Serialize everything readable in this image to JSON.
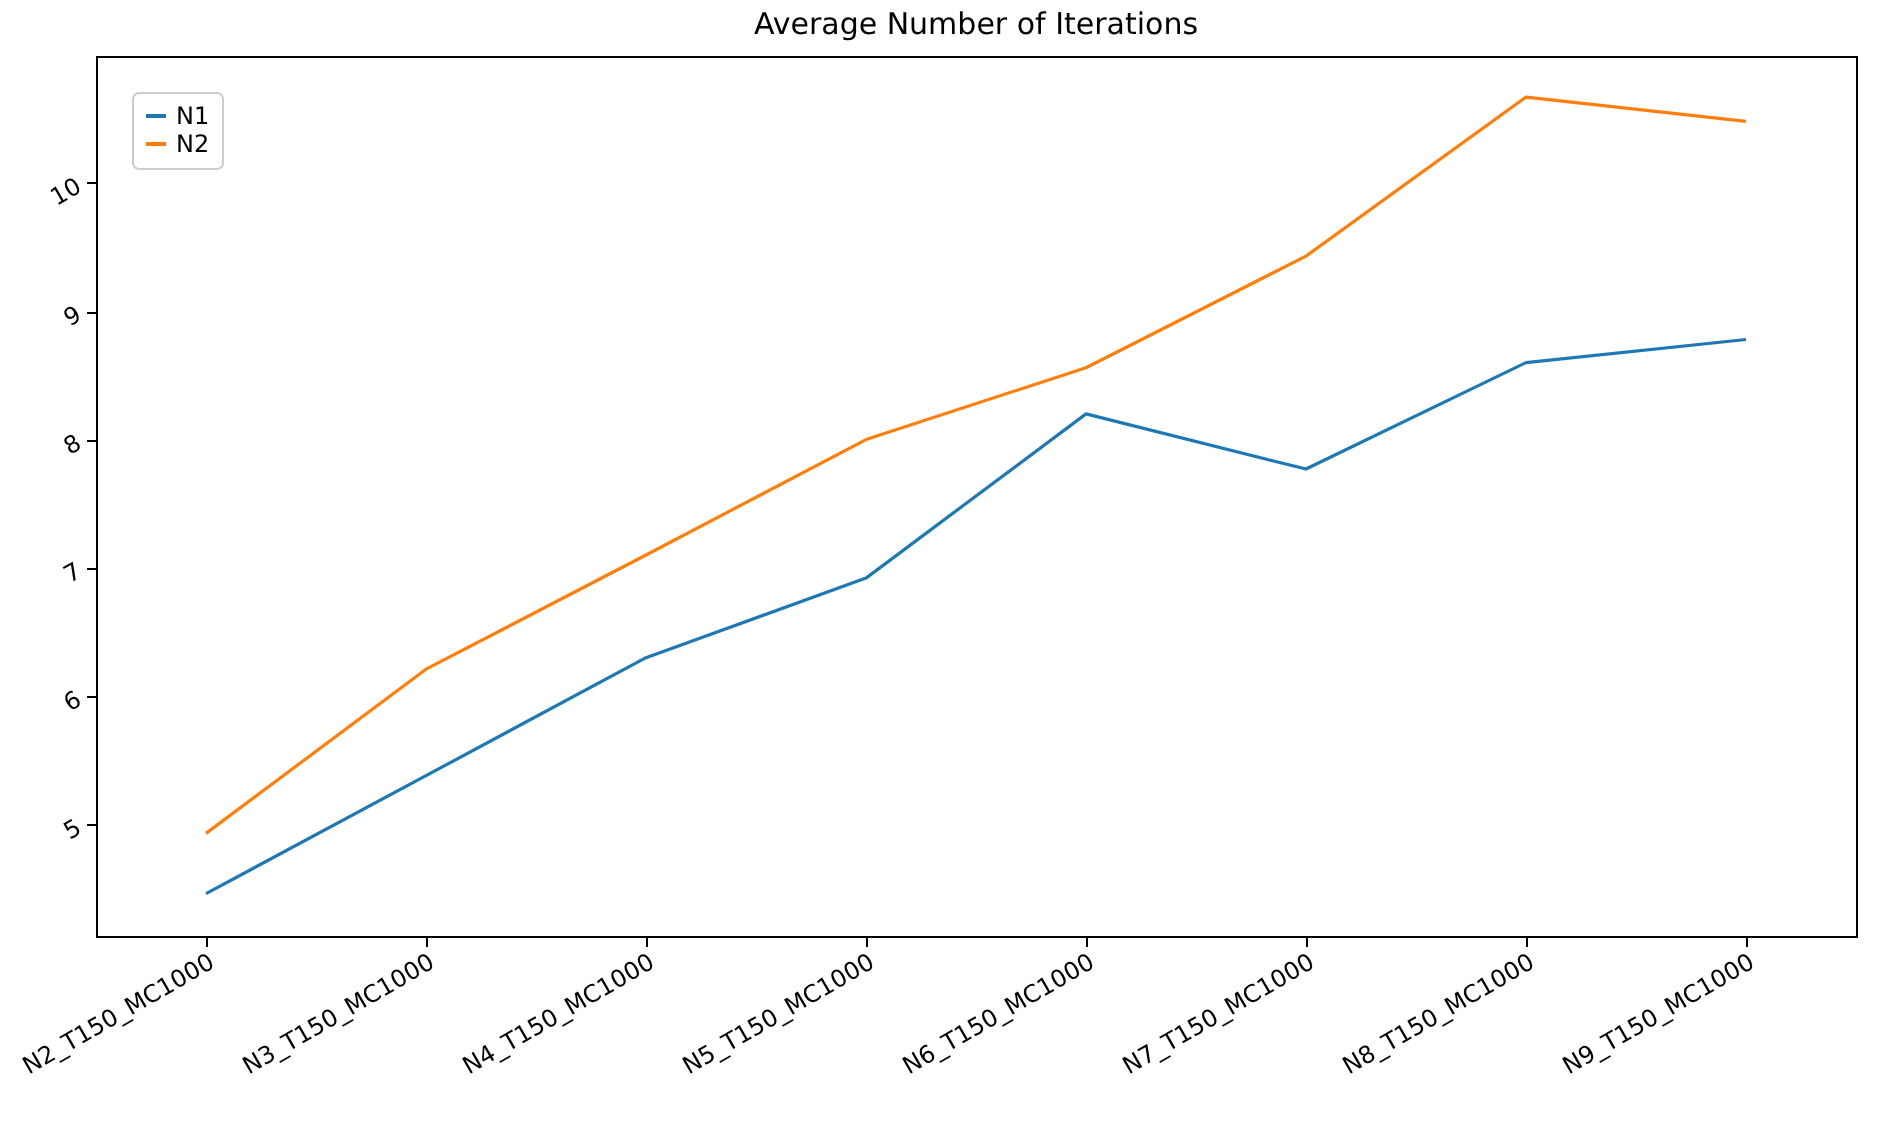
{
  "chart_data": {
    "type": "line",
    "title": "Average Number of Iterations",
    "categories": [
      "N2_T150_MC1000",
      "N3_T150_MC1000",
      "N4_T150_MC1000",
      "N5_T150_MC1000",
      "N6_T150_MC1000",
      "N7_T150_MC1000",
      "N8_T150_MC1000",
      "N9_T150_MC1000"
    ],
    "series": [
      {
        "name": "N1",
        "color": "#1f77b4",
        "values": [
          4.46,
          5.38,
          6.3,
          6.92,
          8.2,
          7.77,
          8.6,
          8.78
        ]
      },
      {
        "name": "N2",
        "color": "#ff7f0e",
        "values": [
          4.93,
          6.21,
          7.1,
          8.0,
          8.56,
          9.43,
          10.67,
          10.48
        ]
      }
    ],
    "ylim": [
      4.13,
      10.99
    ],
    "yticks": [
      5,
      6,
      7,
      8,
      9,
      10
    ],
    "grid": false,
    "legend": "top left",
    "line_style": "solid",
    "marker": "none"
  }
}
